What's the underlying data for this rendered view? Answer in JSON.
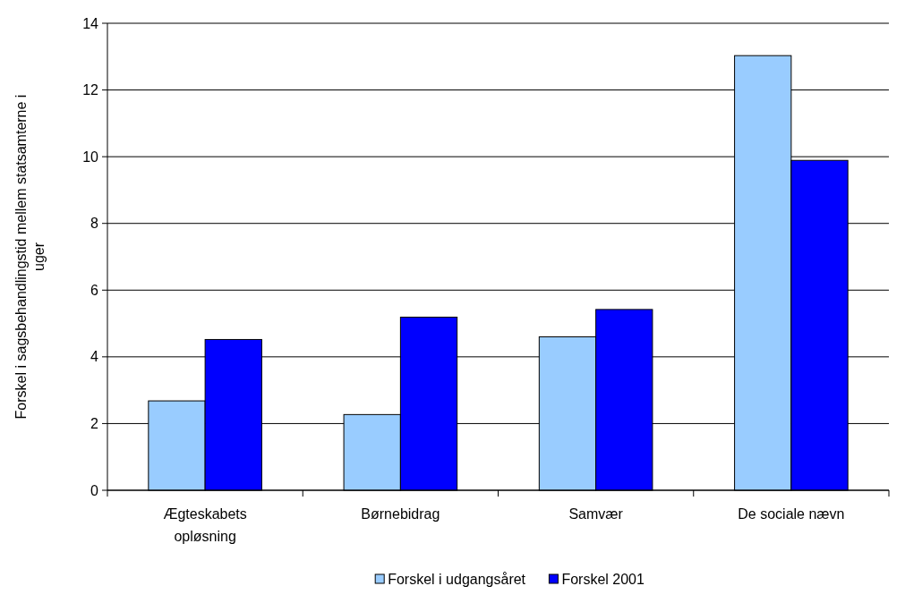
{
  "chart_data": {
    "type": "bar",
    "ylabel": "Forskel i sagsbehandlingstid mellem statsamterne i uger",
    "categories": [
      "Ægteskabets opløsning",
      "Børnebidrag",
      "Samvær",
      "De sociale nævn"
    ],
    "series": [
      {
        "name": "Forskel i udgangsåret",
        "color": "#99ccff",
        "values": [
          2.68,
          2.27,
          4.6,
          13.03
        ]
      },
      {
        "name": "Forskel 2001",
        "color": "#0000ff",
        "values": [
          4.52,
          5.19,
          5.42,
          9.89
        ]
      }
    ],
    "ylim": [
      0,
      14
    ],
    "yticks": [
      0,
      2,
      4,
      6,
      8,
      10,
      12,
      14
    ],
    "grid": "y",
    "legend": "bottom"
  }
}
